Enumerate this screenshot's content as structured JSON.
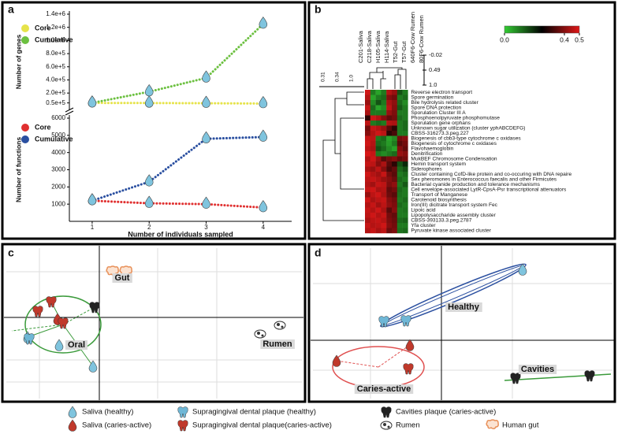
{
  "panels": [
    "a",
    "b",
    "c",
    "d"
  ],
  "chart_data": [
    {
      "type": "line",
      "ylabel": "Number of genes",
      "x": [
        1,
        2,
        3,
        4
      ],
      "xlim": [
        0.6,
        4.5
      ],
      "ylim": [
        -50000,
        1400000
      ],
      "yticks": [
        {
          "value": 50000,
          "label": "0.5e+5"
        },
        {
          "value": 200000,
          "label": "2.0e+5"
        },
        {
          "value": 400000,
          "label": "4.0e+5"
        },
        {
          "value": 600000,
          "label": "6.0e+5"
        },
        {
          "value": 800000,
          "label": "8.0e+5"
        },
        {
          "value": 1000000,
          "label": "1.0e+6"
        },
        {
          "value": 1200000,
          "label": "1.2e+6"
        },
        {
          "value": 1400000,
          "label": "1.4e+6"
        }
      ],
      "series": [
        {
          "name": "Core",
          "color": "#e6e34a",
          "values": [
            50000,
            48000,
            45000,
            40000
          ]
        },
        {
          "name": "Cumulative",
          "color": "#6cc040",
          "values": [
            50000,
            220000,
            430000,
            1250000
          ]
        }
      ]
    },
    {
      "type": "line",
      "ylabel": "Number of functions",
      "xlabel": "Number of individuals sampled",
      "x": [
        1,
        2,
        3,
        4
      ],
      "xticks": [
        1,
        2,
        3,
        4
      ],
      "xlim": [
        0.6,
        4.5
      ],
      "ylim": [
        0,
        6000
      ],
      "yticks": [
        1000,
        2000,
        3000,
        4000,
        5000,
        6000
      ],
      "series": [
        {
          "name": "Core",
          "color": "#e03030",
          "values": [
            1200,
            1050,
            1000,
            800
          ]
        },
        {
          "name": "Cumulative",
          "color": "#2a4fa0",
          "values": [
            1200,
            2300,
            4800,
            4900
          ]
        }
      ]
    },
    {
      "type": "heatmap",
      "columns": [
        "C201-Saliva",
        "C218-Saliva",
        "H105-Saliva",
        "H114-Saliva",
        "T52-Gut",
        "T57-Gut",
        "640F6-Cow Rumen",
        "80F6-Cow Rumen"
      ],
      "rows": [
        "Reverse electron transport",
        "Spore germination",
        "Bile hydrolysis related cluster",
        "Spore DNA protection",
        "Sporulation Cluster III A",
        "Phosphoenolpyruvate phosphomutase",
        "Sporulation gene orphans",
        "Unknown sugar utilization (cluster yphABCDEFG)",
        "CBSS-316273.3.peg.227",
        "Biogenesis of cbb3-type cytochrome c oxidases",
        "Biogenesis of cytochrome c oxidases",
        "Flavohaemoglobin",
        "Denitrification",
        "MukBEF Chromosome Condensation",
        "Hemin transport system",
        "Siderophores",
        "Cluster containing CofD-like protein and co-occuring with DNA repaire",
        "Sex pheromones in Enterococcus faecalis and other Firmicutes",
        "Bacterial cyanide production and tolerance mechanisms",
        "Cell envelope-associated LytR-CpsA-Psr transcriptional attenuators",
        "Transport of Manganese",
        "Carotenoid biosynthesis",
        "Iron(III) dicitrate transport system Fec",
        "Lipoic acid",
        "Lipopolysaccharide assembly cluster",
        "CBSS-393133.3.peg.2787",
        "Yfa cluster",
        "Pyruvate kinase associated cluster"
      ],
      "values": [
        [
          0.48,
          0.1,
          0.05,
          0.1,
          0.45,
          0.42,
          0.15,
          0.1
        ],
        [
          0.45,
          0.05,
          0.1,
          0.12,
          0.4,
          0.38,
          0.1,
          0.12
        ],
        [
          0.42,
          0.08,
          0.15,
          0.1,
          0.44,
          0.41,
          0.12,
          0.08
        ],
        [
          0.47,
          0.12,
          0.05,
          0.08,
          0.46,
          0.4,
          0.14,
          0.1
        ],
        [
          0.44,
          0.1,
          0.1,
          0.1,
          0.42,
          0.39,
          0.1,
          0.1
        ],
        [
          0.3,
          0.48,
          0.45,
          0.4,
          0.36,
          0.38,
          0.12,
          0.1
        ],
        [
          0.46,
          0.1,
          0.12,
          0.1,
          0.45,
          0.44,
          0.1,
          0.12
        ],
        [
          0.38,
          0.47,
          0.45,
          0.42,
          0.35,
          0.3,
          0.1,
          0.12
        ],
        [
          0.4,
          0.45,
          0.48,
          0.46,
          0.3,
          0.33,
          0.1,
          0.1
        ],
        [
          0.47,
          0.46,
          0.1,
          0.12,
          0.05,
          0.08,
          0.38,
          0.4
        ],
        [
          0.48,
          0.45,
          0.12,
          0.1,
          0.06,
          0.1,
          0.35,
          0.38
        ],
        [
          0.46,
          0.44,
          0.15,
          0.12,
          0.08,
          0.05,
          0.4,
          0.36
        ],
        [
          0.49,
          0.47,
          0.1,
          0.08,
          0.1,
          0.12,
          0.42,
          0.4
        ],
        [
          0.45,
          0.48,
          0.42,
          0.35,
          0.38,
          0.4,
          0.36,
          0.38
        ],
        [
          0.47,
          0.46,
          0.4,
          0.44,
          0.35,
          0.3,
          0.15,
          0.2
        ],
        [
          0.44,
          0.42,
          0.46,
          0.4,
          0.33,
          0.36,
          0.12,
          0.15
        ],
        [
          0.48,
          0.45,
          0.43,
          0.47,
          0.38,
          0.35,
          0.1,
          0.12
        ],
        [
          0.46,
          0.47,
          0.45,
          0.42,
          0.4,
          0.37,
          0.12,
          0.1
        ],
        [
          0.45,
          0.43,
          0.47,
          0.46,
          0.39,
          0.41,
          0.1,
          0.14
        ],
        [
          0.47,
          0.48,
          0.44,
          0.45,
          0.36,
          0.38,
          0.12,
          0.1
        ],
        [
          0.42,
          0.46,
          0.48,
          0.44,
          0.37,
          0.35,
          0.11,
          0.1
        ],
        [
          0.48,
          0.44,
          0.46,
          0.47,
          0.4,
          0.38,
          0.1,
          0.12
        ],
        [
          0.45,
          0.47,
          0.43,
          0.46,
          0.41,
          0.39,
          0.12,
          0.1
        ],
        [
          0.47,
          0.45,
          0.48,
          0.44,
          0.35,
          0.4,
          0.1,
          0.11
        ],
        [
          0.46,
          0.48,
          0.45,
          0.47,
          0.38,
          0.36,
          0.1,
          0.1
        ],
        [
          0.44,
          0.46,
          0.47,
          0.45,
          0.39,
          0.37,
          0.12,
          0.13
        ],
        [
          0.47,
          0.45,
          0.46,
          0.48,
          0.4,
          0.38,
          0.1,
          0.1
        ],
        [
          0.45,
          0.47,
          0.44,
          0.46,
          0.37,
          0.39,
          0.11,
          0.12
        ]
      ],
      "zlim": [
        0,
        0.5
      ],
      "zticks": [
        {
          "value": 0,
          "label": "0.0"
        },
        0.4,
        0.5
      ],
      "colors": [
        "#33cc33",
        "#000000",
        "#e01818"
      ],
      "col_dendrogram_labels": [
        "-0.02",
        "0.49",
        "1.0"
      ],
      "row_dendrogram_labels": [
        "0.31",
        "0.34",
        "1.0"
      ]
    },
    {
      "type": "scatter",
      "xlim": [
        -1.16,
        2.54
      ],
      "ylim": [
        -1.02,
        0.88
      ],
      "annotations": [
        "Gut",
        "Oral",
        "Rumen"
      ],
      "series": [
        {
          "name": "Saliva (healthy)",
          "color": "#7fc4de",
          "x": [
            -0.91,
            -0.51,
            -0.08
          ],
          "y": [
            -0.25,
            -0.35,
            -0.62
          ]
        },
        {
          "name": "Supragingival dental plaque (healthy)",
          "color": "#6fb7d6",
          "x": [
            -0.89
          ],
          "y": [
            -0.27
          ]
        },
        {
          "name": "Cavities plaque (caries-active)",
          "color": "#222222",
          "x": [
            -0.06
          ],
          "y": [
            0.13
          ]
        },
        {
          "name": "Saliva (caries-active)",
          "color": "#c0392b",
          "x": [
            -0.53
          ],
          "y": [
            -0.02
          ]
        },
        {
          "name": "Supragingival dental plaque(caries-active)",
          "color": "#c0392b",
          "x": [
            -0.61,
            -0.78,
            -0.46
          ],
          "y": [
            0.2,
            0.08,
            -0.07
          ]
        },
        {
          "name": "Rumen",
          "color": "#333333",
          "x": [
            2.04,
            2.29
          ],
          "y": [
            -0.21,
            -0.1
          ]
        },
        {
          "name": "Human gut",
          "color": "#e8915a",
          "x": [
            0.17,
            0.34
          ],
          "y": [
            0.58,
            0.58
          ]
        }
      ]
    },
    {
      "type": "scatter",
      "xlim": [
        -1.62,
        2.16
      ],
      "ylim": [
        -0.73,
        1.17
      ],
      "annotations": [
        "Healthy",
        "Caries-active",
        "Cavities"
      ],
      "series": [
        {
          "name": "Saliva (healthy)",
          "color": "#7fc4de",
          "x": [
            1.03
          ],
          "y": [
            0.9
          ]
        },
        {
          "name": "Supragingival dental plaque (healthy)",
          "color": "#6fb7d6",
          "x": [
            -0.73,
            -0.45
          ],
          "y": [
            0.24,
            0.25
          ]
        },
        {
          "name": "Saliva (caries-active)",
          "color": "#c0392b",
          "x": [
            -1.33,
            -0.4
          ],
          "y": [
            -0.26,
            -0.06
          ]
        },
        {
          "name": "Supragingival dental plaque(caries-active)",
          "color": "#c0392b",
          "x": [
            -0.42
          ],
          "y": [
            -0.36
          ]
        },
        {
          "name": "Cavities plaque (caries-active)",
          "color": "#222222",
          "x": [
            0.94,
            1.88
          ],
          "y": [
            -0.48,
            -0.45
          ]
        }
      ]
    }
  ]
}
